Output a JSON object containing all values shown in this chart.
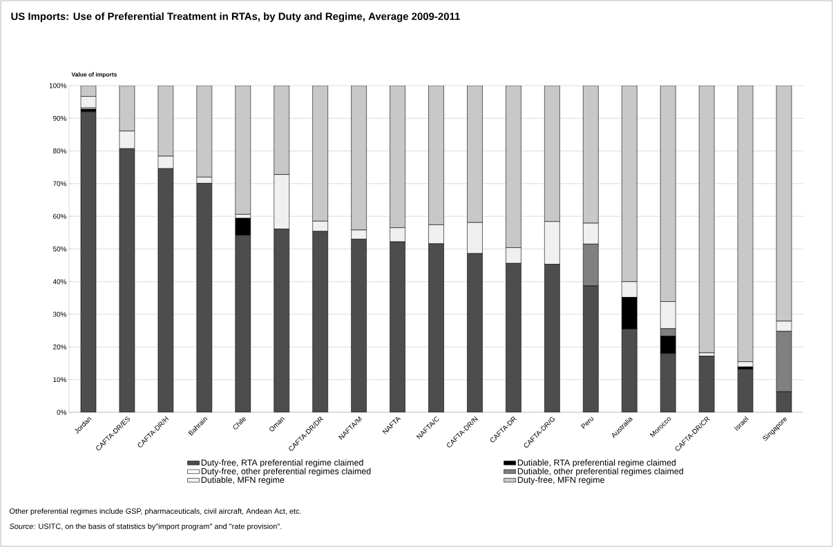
{
  "chart_data": {
    "type": "bar",
    "stacked": true,
    "title": "US Imports: Use of Preferential Treatment in RTAs, by Duty and Regime, Average 2009-2011",
    "ylabel": "Value of imports",
    "categories": [
      "Jordan",
      "CAFTA-DR/ES",
      "CAFTA-DR/H",
      "Bahrain",
      "Chile",
      "Oman",
      "CAFTA-DR/DR",
      "NAFTA/M",
      "NAFTA",
      "NAFTA/C",
      "CAFTA-DR/N",
      "CAFTA-DR",
      "CAFTA-DR/G",
      "Peru",
      "Australia",
      "Morocco",
      "CAFTA-DR/CR",
      "Israel",
      "Singapore"
    ],
    "series": [
      {
        "name": "Duty-free, RTA preferential regime claimed",
        "color": "#4d4d4d",
        "values": [
          92.0,
          80.7,
          74.6,
          70.1,
          54.2,
          56.1,
          55.4,
          53.0,
          52.2,
          51.6,
          48.6,
          45.6,
          45.3,
          38.7,
          25.5,
          18.0,
          17.2,
          13.2,
          6.3
        ]
      },
      {
        "name": "Dutiable, RTA preferential regime claimed",
        "color": "#000000",
        "values": [
          0.8,
          null,
          null,
          null,
          5.2,
          null,
          null,
          null,
          null,
          null,
          null,
          null,
          null,
          null,
          9.7,
          5.3,
          null,
          0.7,
          null
        ]
      },
      {
        "name": "Duty-free, other preferential regimes claimed",
        "color": "#ffffff",
        "values": [
          0.4,
          null,
          null,
          null,
          null,
          null,
          null,
          null,
          null,
          null,
          null,
          null,
          null,
          null,
          null,
          null,
          null,
          null,
          null
        ]
      },
      {
        "name": "Dutiable, other preferential regimes claimed",
        "color": "#808080",
        "values": [
          null,
          null,
          null,
          null,
          null,
          null,
          null,
          null,
          null,
          null,
          null,
          null,
          null,
          12.8,
          null,
          2.3,
          null,
          null,
          18.5
        ]
      },
      {
        "name": "Dutiable, MFN regime",
        "color": "#f0f0f0",
        "values": [
          3.5,
          5.4,
          3.8,
          1.9,
          1.2,
          16.7,
          3.1,
          2.8,
          4.3,
          5.8,
          9.5,
          4.8,
          13.1,
          6.4,
          4.8,
          8.3,
          1.0,
          1.6,
          3.1
        ]
      },
      {
        "name": "Duty-free, MFN regime",
        "color": "#c8c8c8",
        "values": [
          3.3,
          13.9,
          21.6,
          28.0,
          39.4,
          27.2,
          41.5,
          44.2,
          43.5,
          42.6,
          41.9,
          49.6,
          41.6,
          42.1,
          60.0,
          66.1,
          81.8,
          84.5,
          72.1
        ]
      }
    ],
    "ylim": [
      0,
      100
    ],
    "yticks": [
      {
        "value": 0,
        "label": "0%"
      },
      {
        "value": 10,
        "label": "10%"
      },
      {
        "value": 20,
        "label": "20%"
      },
      {
        "value": 30,
        "label": "30%"
      },
      {
        "value": 40,
        "label": "40%"
      },
      {
        "value": 50,
        "label": "50%"
      },
      {
        "value": 60,
        "label": "60%"
      },
      {
        "value": 70,
        "label": "70%"
      },
      {
        "value": 80,
        "label": "80%"
      },
      {
        "value": 90,
        "label": "90%"
      },
      {
        "value": 100,
        "label": "100%"
      }
    ],
    "grid": "y",
    "legend": "bottom",
    "annotations": [
      "Other preferential regimes include GSP, pharmaceuticals, civil aircraft, Andean Act, etc.",
      "*Source:* USITC, on the basis of statistics by\"import program\" and \"rate provision\"."
    ]
  }
}
